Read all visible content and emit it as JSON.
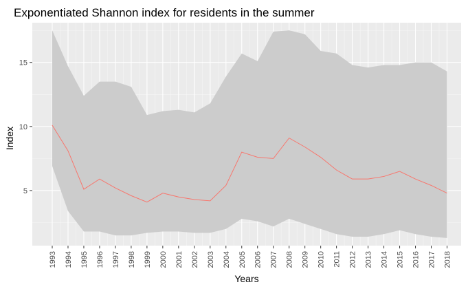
{
  "chart_data": {
    "type": "area",
    "title": "Exponentiated Shannon index for residents in the summer",
    "xlabel": "Years",
    "ylabel": "Index",
    "x": [
      1993,
      1994,
      1995,
      1996,
      1997,
      1998,
      1999,
      2000,
      2001,
      2002,
      2003,
      2004,
      2005,
      2006,
      2007,
      2008,
      2009,
      2010,
      2011,
      2012,
      2013,
      2014,
      2015,
      2016,
      2017,
      2018
    ],
    "x_tick_labels": [
      "1993",
      "1994",
      "1995",
      "1996",
      "1997",
      "1998",
      "1999",
      "2000",
      "2001",
      "2002",
      "2003",
      "2004",
      "2005",
      "2006",
      "2007",
      "2008",
      "2009",
      "2010",
      "2011",
      "2012",
      "2013",
      "2014",
      "2015",
      "2016",
      "2017",
      "2018"
    ],
    "y_ticks": [
      5,
      10,
      15
    ],
    "y_tick_labels": [
      "5",
      "10",
      "15"
    ],
    "ylim": [
      0.7,
      18.1
    ],
    "series": [
      {
        "kind": "ribbon",
        "upper": [
          17.5,
          14.7,
          12.4,
          13.5,
          13.5,
          13.1,
          10.9,
          11.2,
          11.3,
          11.1,
          11.8,
          13.9,
          15.7,
          15.1,
          17.4,
          17.5,
          17.2,
          15.9,
          15.7,
          14.8,
          14.6,
          14.8,
          14.8,
          15.0,
          15.0,
          14.3
        ],
        "lower": [
          6.9,
          3.4,
          1.8,
          1.8,
          1.5,
          1.5,
          1.7,
          1.8,
          1.8,
          1.7,
          1.7,
          2.0,
          2.8,
          2.6,
          2.2,
          2.8,
          2.4,
          2.0,
          1.6,
          1.4,
          1.4,
          1.6,
          1.9,
          1.6,
          1.4,
          1.3
        ]
      },
      {
        "kind": "line",
        "values": [
          10.1,
          8.1,
          5.1,
          5.9,
          5.2,
          4.6,
          4.1,
          4.8,
          4.5,
          4.3,
          4.2,
          5.4,
          8.0,
          7.6,
          7.5,
          9.1,
          8.4,
          7.6,
          6.6,
          5.9,
          5.9,
          6.1,
          6.5,
          5.9,
          5.4,
          4.8
        ]
      }
    ],
    "colors": {
      "panel_background": "#ebebeb",
      "grid_major": "#ffffff",
      "grid_minor": "#f5f5f5",
      "ribbon": "#cccccc",
      "line": "#f8766d",
      "tick_label": "#4d4d4d",
      "tick_mark": "#333333"
    },
    "grid": true,
    "legend": "none"
  }
}
